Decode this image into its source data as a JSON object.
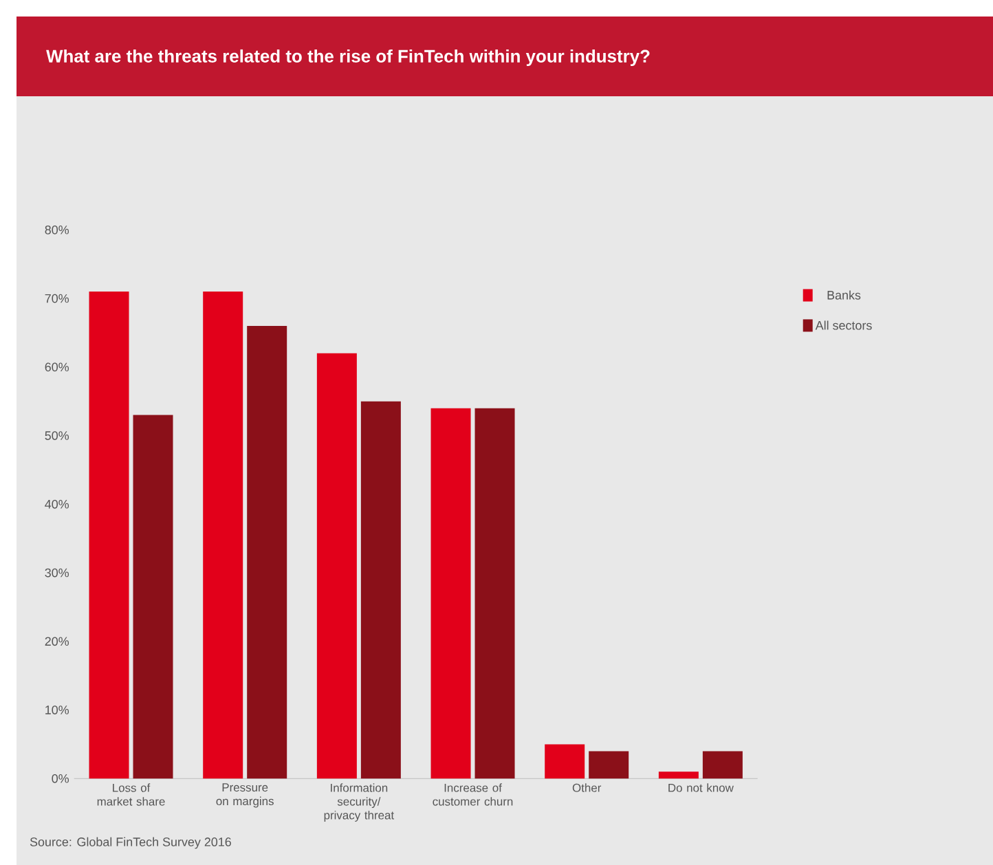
{
  "chart_data": {
    "type": "bar",
    "title": "What are the threats related to the rise of FinTech within your industry?",
    "categories": [
      "Loss of market share",
      "Pressure on margins",
      "Information security/ privacy threat",
      "Increase of customer churn",
      "Other",
      "Do not know"
    ],
    "series": [
      {
        "name": "Banks",
        "color": "#e2001a",
        "values": [
          71,
          71,
          62,
          54,
          5,
          1
        ]
      },
      {
        "name": "All sectors",
        "color": "#8b1019",
        "values": [
          53,
          66,
          55,
          54,
          4,
          4
        ]
      }
    ],
    "ylim": [
      0,
      80
    ],
    "yticks": [
      {
        "value": 0,
        "label": "0%"
      },
      {
        "value": 10,
        "label": "10%"
      },
      {
        "value": 20,
        "label": "20%"
      },
      {
        "value": 30,
        "label": "30%"
      },
      {
        "value": 40,
        "label": "40%"
      },
      {
        "value": 50,
        "label": "50%"
      },
      {
        "value": 60,
        "label": "60%"
      },
      {
        "value": 70,
        "label": "70%"
      },
      {
        "value": 80,
        "label": "80%"
      }
    ],
    "legend": "right",
    "annotations": [
      "Source: Global FinTech Survey 2016"
    ]
  }
}
